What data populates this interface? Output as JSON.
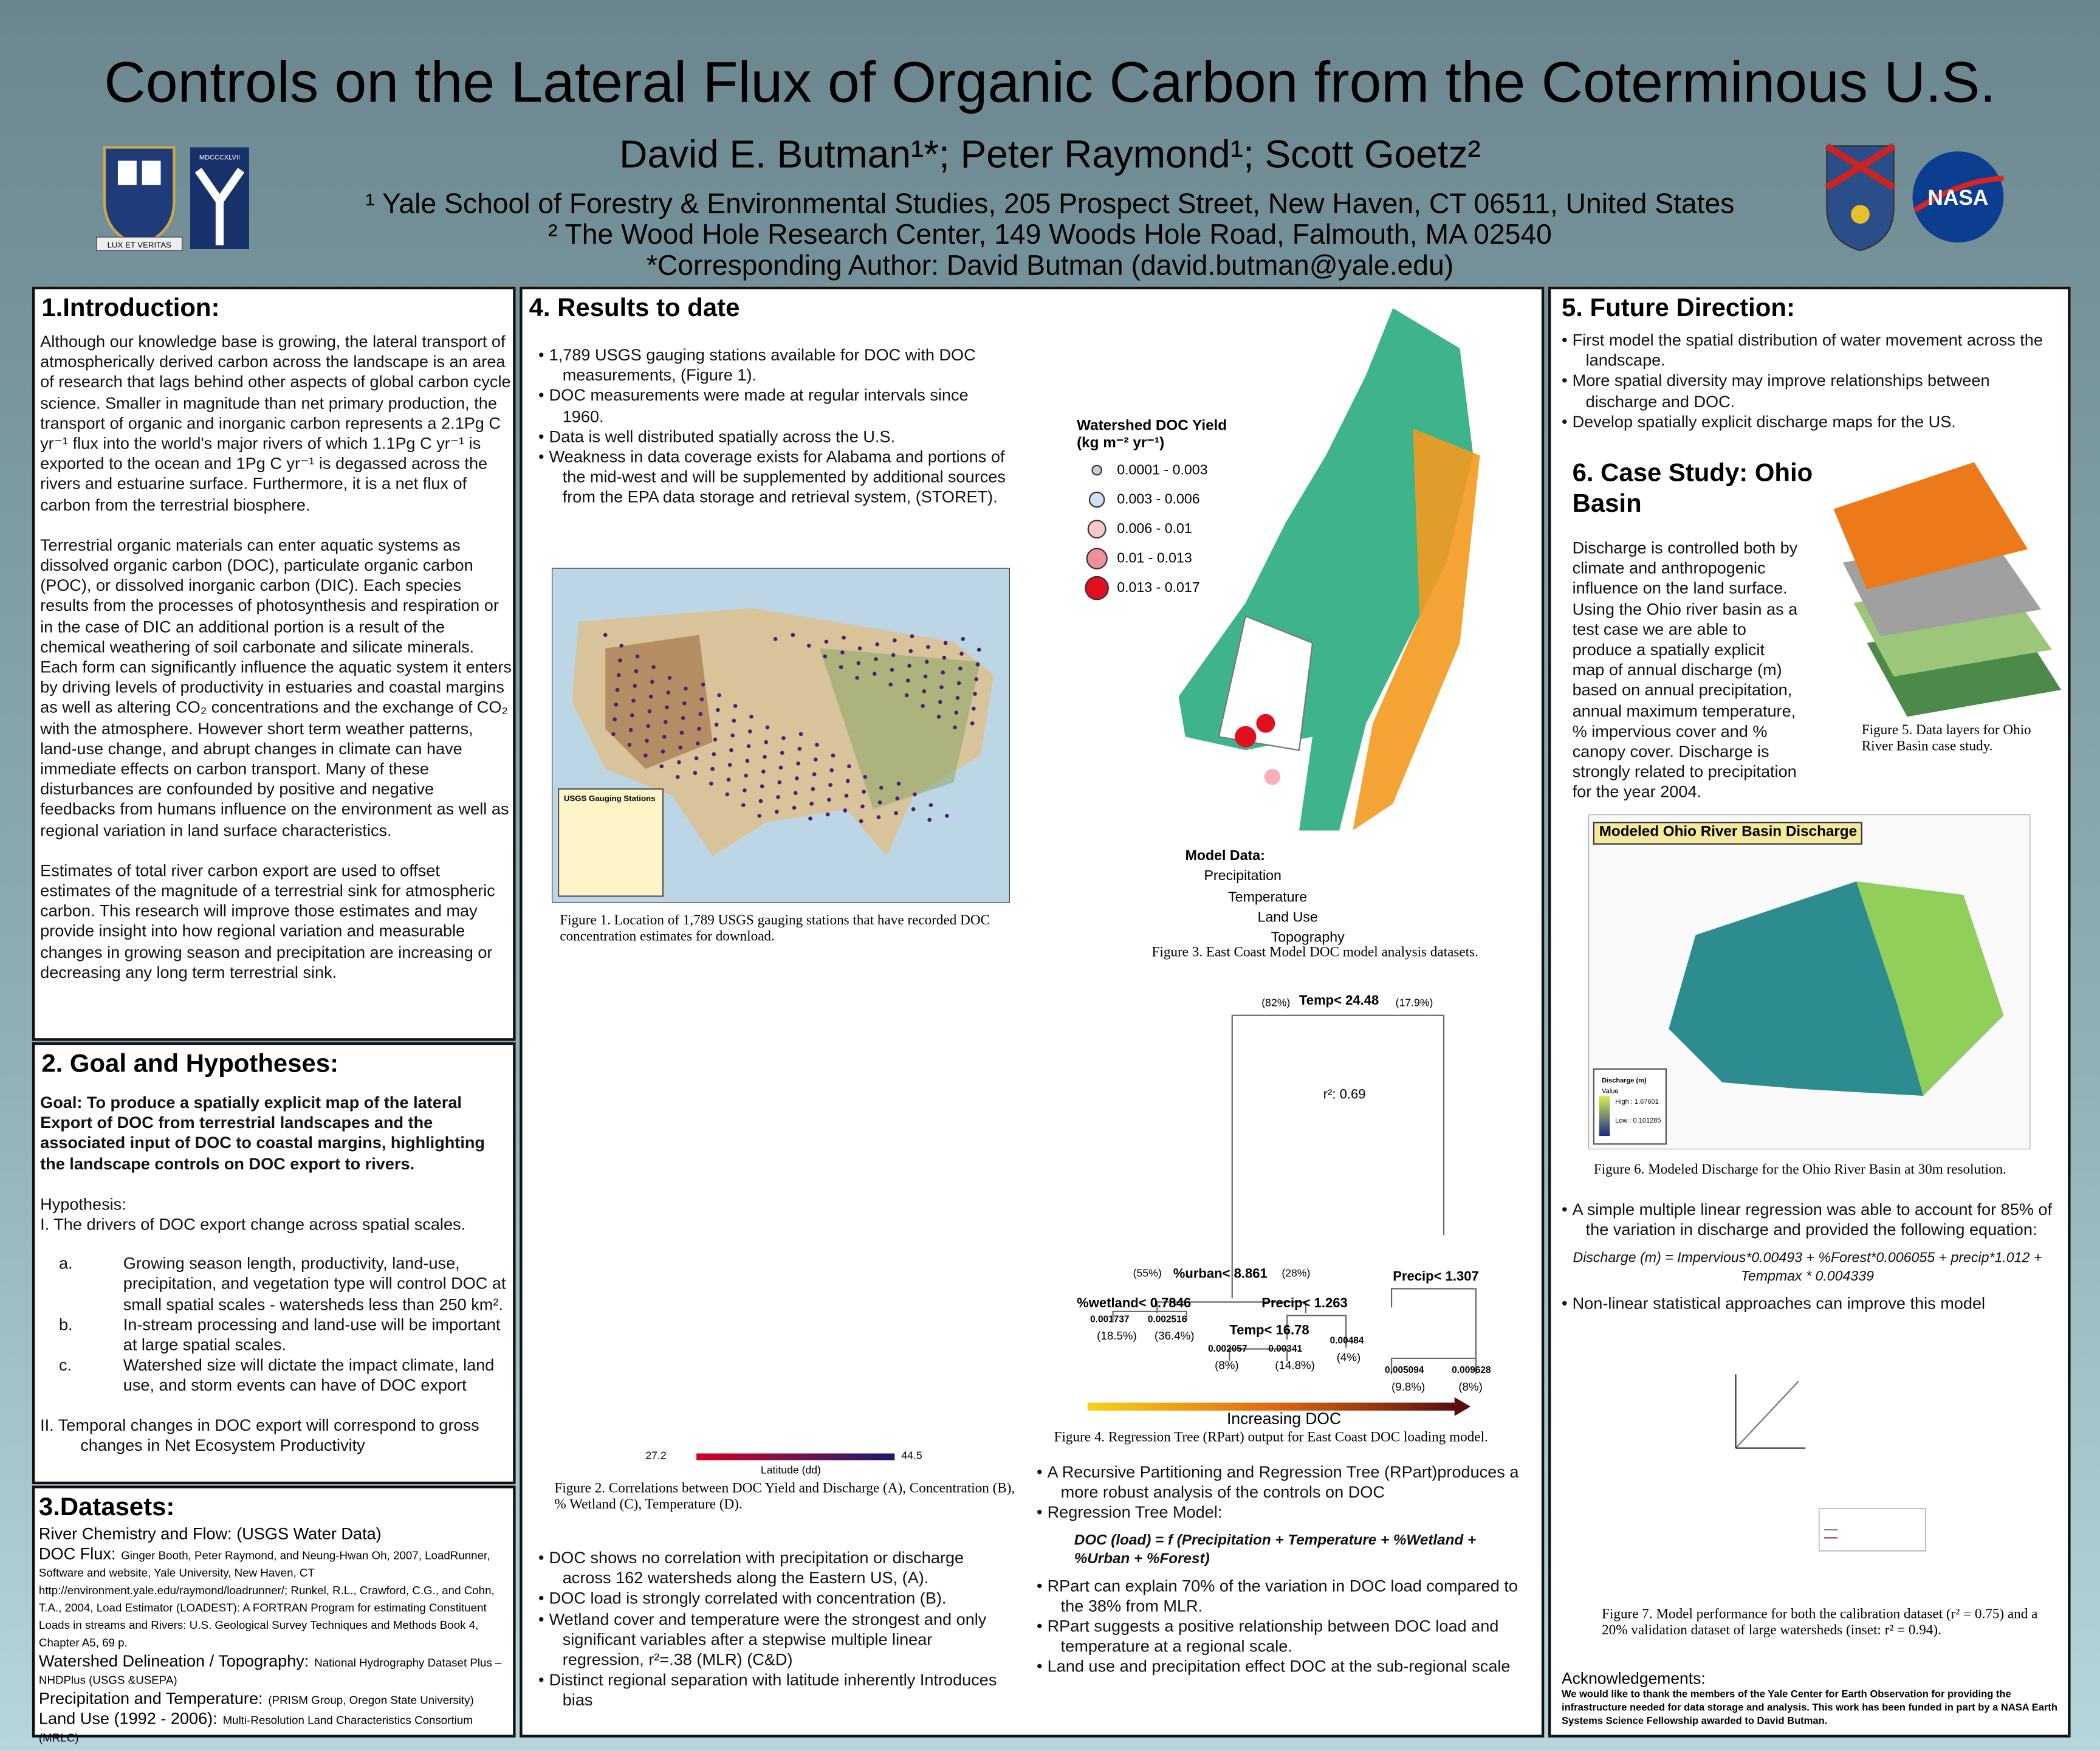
{
  "header": {
    "title": "Controls on the Lateral Flux of Organic Carbon from the Coterminous U.S.",
    "authors": "David E. Butman¹*; Peter Raymond¹; Scott Goetz²",
    "affiliations": [
      "¹ Yale School of Forestry & Environmental Studies, 205 Prospect Street, New Haven, CT 06511, United States",
      "² The Wood Hole Research Center, 149 Woods Hole Road, Falmouth, MA 02540",
      "*Corresponding Author: David Butman (david.butman@yale.edu)"
    ],
    "logos": [
      "LUX ET VERITAS",
      "MDCCCXLVII",
      "NASA"
    ]
  },
  "intro": {
    "heading": "1.Introduction:",
    "paragraphs": [
      "Although our knowledge base is growing, the lateral transport of atmospherically derived carbon across the landscape is an area of research that lags behind other aspects of global carbon cycle science.  Smaller in magnitude than net primary production, the transport of organic and inorganic carbon represents a 2.1Pg C yr⁻¹ flux into the world's major rivers of which 1.1Pg C yr⁻¹ is exported to the ocean and 1Pg C yr⁻¹ is degassed across the rivers and estuarine surface. Furthermore, it is a net flux of carbon from the terrestrial biosphere.",
      "Terrestrial organic materials can enter aquatic systems as dissolved organic carbon (DOC), particulate organic carbon (POC), or dissolved inorganic carbon (DIC).  Each species results from the processes of photosynthesis and respiration or in the case of DIC an additional portion is a result of the chemical weathering of soil carbonate and silicate minerals. Each form can significantly influence the aquatic system it enters by driving levels of productivity in estuaries and coastal margins as well as altering CO₂ concentrations and the exchange of CO₂ with the atmosphere.  However short term weather patterns, land-use change, and abrupt changes in climate can have immediate effects on carbon transport. Many of these disturbances are confounded by positive and negative feedbacks from humans influence on the environment as well as regional variation in land surface characteristics.",
      "Estimates of total river carbon export are used to offset estimates of the magnitude of a terrestrial sink for atmospheric carbon.  This research will improve those estimates and may provide insight into how regional variation and measurable changes in growing season and precipitation are increasing or decreasing any long term terrestrial sink."
    ]
  },
  "goal": {
    "heading": "2. Goal and Hypotheses:",
    "goal": "Goal:  To produce a spatially explicit map of the lateral Export of DOC from terrestrial landscapes and the associated input of DOC to coastal margins, highlighting the landscape controls on DOC export to rivers.",
    "hypothesis_label": "Hypothesis:",
    "h1": "I.  The drivers of DOC export change across spatial scales.",
    "h1_items": [
      {
        "marker": "a.",
        "text": "Growing season length, productivity, land-use, precipitation, and vegetation type will control DOC at small spatial scales - watersheds less than 250 km²."
      },
      {
        "marker": "b.",
        "text": "In-stream processing and land-use will be important at large spatial scales."
      },
      {
        "marker": "c.",
        "text": "Watershed size will dictate the impact climate, land use, and storm events can have of DOC export"
      }
    ],
    "h2": "II.  Temporal changes in DOC export will correspond to gross changes in Net Ecosystem Productivity"
  },
  "datasets": {
    "heading": "3.Datasets:",
    "items": [
      {
        "label": "River Chemistry and Flow: (USGS Water Data)",
        "detail": ""
      },
      {
        "label": "DOC Flux:",
        "detail": "Ginger Booth, Peter Raymond, and Neung-Hwan Oh, 2007, LoadRunner, Software and website, Yale University, New Haven, CT http://environment.yale.edu/raymond/loadrunner/; Runkel, R.L., Crawford, C.G., and Cohn, T.A., 2004, Load Estimator    (LOADEST): A FORTRAN Program for estimating Constituent Loads in streams and Rivers: U.S. Geological Survey Techniques and Methods Book 4, Chapter A5, 69 p."
      },
      {
        "label": "Watershed Delineation / Topography:",
        "detail": "National Hydrography Dataset Plus – NHDPlus (USGS &USEPA)"
      },
      {
        "label": "Precipitation and Temperature:",
        "detail": "(PRISM Group, Oregon State University)"
      },
      {
        "label": "Land Use (1992 - 2006):",
        "detail": "Multi-Resolution Land Characteristics Consortium (MRLC)"
      }
    ]
  },
  "results": {
    "heading": "4. Results to date",
    "bullets": [
      "1,789 USGS gauging stations available for DOC with DOC measurements, (Figure 1).",
      "DOC measurements were made at regular intervals since 1960.",
      "Data is well distributed spatially across the U.S.",
      "Weakness in data coverage exists for Alabama and portions of  the mid-west and will be supplemented by additional sources from the EPA data storage and retrieval system, (STORET)."
    ],
    "fig1": {
      "legend_title": "USGS Gauging Stations",
      "caption": "Figure 1. Location of 1,789 USGS gauging stations that have recorded DOC concentration estimates for download."
    },
    "fig3": {
      "legend_title": "Watershed DOC Yield (kg m⁻² yr⁻¹)",
      "legend": [
        "0.0001 - 0.003",
        "0.003 - 0.006",
        "0.006 - 0.01",
        "0.01 - 0.013",
        "0.013 - 0.017"
      ],
      "model_title": "Model Data:",
      "model_items": [
        "Precipitation",
        "Temperature",
        "Land Use",
        "Topography"
      ],
      "caption": "Figure 3. East Coast Model DOC model analysis datasets."
    },
    "fig2": {
      "colorbar_min": "27.2",
      "colorbar_max": "44.5",
      "colorbar_label": "Latitude (dd)",
      "caption": "Figure 2.  Correlations between DOC Yield and Discharge (A), Concentration (B), % Wetland (C), Temperature (D)."
    },
    "fig4": {
      "root_left": "(82%)",
      "root": "Temp< 24.48",
      "root_right": "(17.9%)",
      "r2": "r²: 0.69",
      "n1_left": "(55%)",
      "n1": "%urban< 8.861",
      "n1_right": "(28%)",
      "n2": "Precip< 1.307",
      "n3": "%wetland< 0.7846",
      "n4": "Precip< 1.263",
      "n5": "Temp< 16.78",
      "leaves": [
        [
          "0.001737",
          "(18.5%)"
        ],
        [
          "0.002516",
          "(36.4%)"
        ],
        [
          "0.002057",
          "(8%)"
        ],
        [
          "0.00341",
          "(14.8%)"
        ],
        [
          "0.00484",
          "(4%)"
        ],
        [
          "0.005094",
          "(9.8%)"
        ],
        [
          "0.009628",
          "(8%)"
        ]
      ],
      "arrow": "Increasing DOC",
      "caption": "Figure 4. Regression Tree (RPart) output for East Coast DOC loading model."
    },
    "bullets_left": [
      "DOC shows no correlation with precipitation or discharge across 162 watersheds along the Eastern US, (A).",
      "DOC load is strongly correlated with concentration (B).",
      "Wetland cover and temperature were the strongest and only significant variables after a stepwise multiple linear regression, r²=.38 (MLR) (C&D)",
      "Distinct regional separation with latitude inherently Introduces  bias"
    ],
    "bullets_right": [
      "A Recursive Partitioning and Regression Tree (RPart)produces a more robust analysis of the controls on DOC",
      "Regression Tree Model:"
    ],
    "model_eq": "DOC (load) = f (Precipitation + Temperature + %Wetland + %Urban + %Forest)",
    "bullets_right2": [
      "RPart can explain 70% of the variation in DOC load compared to the 38% from MLR.",
      "RPart suggests a positive relationship between DOC load and temperature at a regional scale.",
      "Land use and precipitation effect DOC at the sub-regional scale"
    ]
  },
  "future": {
    "heading": "5. Future Direction:",
    "bullets": [
      "First model the spatial distribution of water movement across the landscape.",
      "More spatial diversity may improve relationships between discharge and DOC.",
      "Develop spatially explicit discharge maps for the US."
    ]
  },
  "case": {
    "heading": "6. Case Study: Ohio Basin",
    "text": "Discharge is controlled both by climate and anthropogenic influence on the land surface. Using the Ohio river basin as a test case we are able to produce a spatially explicit map of annual discharge (m) based on annual precipitation, annual maximum temperature, % impervious cover and % canopy cover.  Discharge is strongly related to precipitation for the year 2004.",
    "fig5_caption": "Figure 5.  Data layers for Ohio River Basin case study.",
    "fig6_title": "Modeled Ohio River Basin Discharge",
    "fig6_legend": [
      "Discharge (m)",
      "Value",
      "High : 1.67601",
      "Low : 0.101285"
    ],
    "fig6_caption": "Figure 6.  Modeled Discharge for the Ohio River Basin at 30m resolution.",
    "bullets": [
      "A simple multiple linear regression was able to account for 85% of the variation in discharge and provided the following equation:"
    ],
    "equation": "Discharge (m) = Impervious*0.00493  +  %Forest*0.006055 + precip*1.012 + Tempmax * 0.004339",
    "bullets2": [
      "Non-linear statistical approaches can improve this model"
    ],
    "fig7_caption": "Figure 7.  Model performance for both the calibration dataset (r² = 0.75) and a 20% validation dataset of large watersheds (inset: r² = 0.94).",
    "ack_heading": "Acknowledgements:",
    "ack": "We would like to thank the members of the Yale Center for Earth Observation for providing the infrastructure needed for data storage and analysis.  This work has been funded in part by a NASA Earth Systems Science Fellowship awarded to David Butman."
  }
}
